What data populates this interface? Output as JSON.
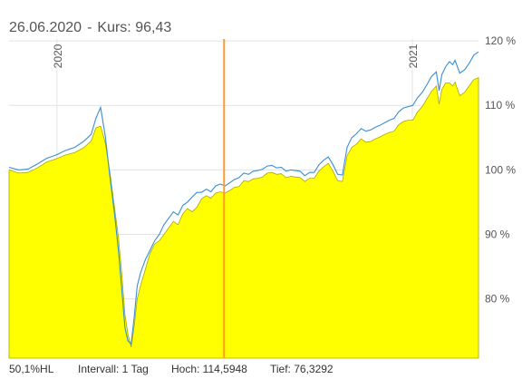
{
  "header": {
    "date": "26.06.2020",
    "separator": "-",
    "kurs_label": "Kurs:",
    "kurs_value": "96,43"
  },
  "footer": {
    "hl": "50,1%HL",
    "interval": "Intervall: 1 Tag",
    "hoch": "Hoch: 114,5948",
    "tief": "Tief: 76,3292"
  },
  "colors": {
    "area_fill": "#ffff00",
    "area_line": "#a8a800",
    "line": "#3a8fd0",
    "cursor": "#ff9a2e",
    "grid": "#e3e3e3"
  },
  "chart_data": {
    "type": "area",
    "x_labels": [
      "2020",
      "2021"
    ],
    "y_ticks": [
      {
        "value": 80,
        "label": "80 %"
      },
      {
        "value": 90,
        "label": "90 %"
      },
      {
        "value": 100,
        "label": "100 %"
      },
      {
        "value": 110,
        "label": "110 %"
      },
      {
        "value": 120,
        "label": "120 %"
      }
    ],
    "ylim": [
      70.8,
      120.3
    ],
    "grid": true,
    "x_domain": [
      0,
      100
    ],
    "cursor_x": 45.8,
    "x_label_positions": [
      10.2,
      85.9
    ],
    "series": [
      {
        "kind": "area",
        "points": [
          [
            0,
            100
          ],
          [
            2,
            99.5
          ],
          [
            4,
            99.6
          ],
          [
            6,
            100.3
          ],
          [
            8,
            101.2
          ],
          [
            10,
            101.7
          ],
          [
            12,
            102.3
          ],
          [
            14,
            102.7
          ],
          [
            16,
            103.5
          ],
          [
            17.5,
            104.5
          ],
          [
            18.5,
            106.5
          ],
          [
            19.5,
            106.8
          ],
          [
            20.5,
            104.2
          ],
          [
            21.5,
            99.5
          ],
          [
            22.5,
            94
          ],
          [
            23.3,
            89.5
          ],
          [
            24,
            84
          ],
          [
            24.7,
            77.5
          ],
          [
            25.3,
            74.6
          ],
          [
            26,
            72.5
          ],
          [
            26.7,
            76
          ],
          [
            27.3,
            80
          ],
          [
            28,
            82
          ],
          [
            29,
            84.5
          ],
          [
            30,
            87
          ],
          [
            31,
            88.5
          ],
          [
            32,
            89
          ],
          [
            33,
            90
          ],
          [
            34,
            91
          ],
          [
            35,
            92
          ],
          [
            36,
            91.5
          ],
          [
            37,
            93.2
          ],
          [
            38,
            94
          ],
          [
            39,
            93.5
          ],
          [
            40,
            94.2
          ],
          [
            41,
            95.5
          ],
          [
            42,
            96
          ],
          [
            43,
            95.6
          ],
          [
            44,
            96.4
          ],
          [
            45,
            96.6
          ],
          [
            46,
            96.4
          ],
          [
            47,
            96.8
          ],
          [
            48,
            97.3
          ],
          [
            49,
            97.4
          ],
          [
            50,
            98.3
          ],
          [
            51,
            98.2
          ],
          [
            52,
            98.6
          ],
          [
            53,
            98.7
          ],
          [
            54,
            98.9
          ],
          [
            55,
            99.5
          ],
          [
            56,
            99.6
          ],
          [
            57,
            99.3
          ],
          [
            58,
            99.4
          ],
          [
            59,
            98.8
          ],
          [
            60,
            99
          ],
          [
            61,
            98.9
          ],
          [
            62,
            98.8
          ],
          [
            63,
            98.2
          ],
          [
            64,
            98.7
          ],
          [
            65,
            98.7
          ],
          [
            66,
            99.8
          ],
          [
            67,
            100.5
          ],
          [
            68,
            101
          ],
          [
            69,
            99.8
          ],
          [
            70,
            98.3
          ],
          [
            71,
            98.2
          ],
          [
            72,
            102.2
          ],
          [
            73,
            103.5
          ],
          [
            74,
            104
          ],
          [
            75,
            104.8
          ],
          [
            76,
            104.3
          ],
          [
            77,
            104.4
          ],
          [
            78,
            104.8
          ],
          [
            79,
            105.1
          ],
          [
            80,
            105.5
          ],
          [
            81,
            105.8
          ],
          [
            82,
            106
          ],
          [
            83,
            107
          ],
          [
            84,
            107.5
          ],
          [
            85,
            107.7
          ],
          [
            86,
            107.7
          ],
          [
            87,
            109
          ],
          [
            88,
            109.8
          ],
          [
            89,
            111
          ],
          [
            90,
            112.2
          ],
          [
            91,
            113
          ],
          [
            91.6,
            110.2
          ],
          [
            92.2,
            112.5
          ],
          [
            93,
            113.5
          ],
          [
            93.8,
            113.5
          ],
          [
            94.5,
            113
          ],
          [
            95,
            113.6
          ],
          [
            96,
            111.5
          ],
          [
            97,
            112
          ],
          [
            98,
            113
          ],
          [
            99,
            114
          ],
          [
            100,
            114.3
          ]
        ]
      },
      {
        "kind": "line",
        "points": [
          [
            0,
            100.4
          ],
          [
            2,
            100
          ],
          [
            4,
            100.1
          ],
          [
            6,
            100.9
          ],
          [
            8,
            101.8
          ],
          [
            10,
            102.3
          ],
          [
            12,
            103
          ],
          [
            14,
            103.5
          ],
          [
            16,
            104.5
          ],
          [
            17.5,
            105.5
          ],
          [
            18.5,
            108
          ],
          [
            19.5,
            109.7
          ],
          [
            20.5,
            105.2
          ],
          [
            21.5,
            98.8
          ],
          [
            22.5,
            93
          ],
          [
            23.3,
            87.5
          ],
          [
            24,
            81.5
          ],
          [
            24.7,
            75.5
          ],
          [
            25.3,
            73.5
          ],
          [
            26,
            73
          ],
          [
            26.7,
            77.5
          ],
          [
            27.3,
            82
          ],
          [
            28,
            84
          ],
          [
            29,
            86
          ],
          [
            30,
            87.5
          ],
          [
            31,
            89
          ],
          [
            32,
            90
          ],
          [
            33,
            91.5
          ],
          [
            34,
            92.5
          ],
          [
            35,
            93.5
          ],
          [
            36,
            93
          ],
          [
            37,
            94.5
          ],
          [
            38,
            95
          ],
          [
            39,
            95.8
          ],
          [
            40,
            96.5
          ],
          [
            41,
            96.5
          ],
          [
            42,
            97
          ],
          [
            43,
            96.6
          ],
          [
            44,
            97.5
          ],
          [
            45,
            97.8
          ],
          [
            46,
            97.5
          ],
          [
            47,
            98
          ],
          [
            48,
            98.5
          ],
          [
            49,
            98.8
          ],
          [
            50,
            99.5
          ],
          [
            51,
            99.3
          ],
          [
            52,
            99.8
          ],
          [
            53,
            99.9
          ],
          [
            54,
            100.1
          ],
          [
            55,
            100.6
          ],
          [
            56,
            100.7
          ],
          [
            57,
            100.3
          ],
          [
            58,
            100.4
          ],
          [
            59,
            99.8
          ],
          [
            60,
            100
          ],
          [
            61,
            99.9
          ],
          [
            62,
            99.8
          ],
          [
            63,
            99.1
          ],
          [
            64,
            99.6
          ],
          [
            65,
            99.6
          ],
          [
            66,
            100.8
          ],
          [
            67,
            101.5
          ],
          [
            68,
            102
          ],
          [
            69,
            100.8
          ],
          [
            70,
            99.3
          ],
          [
            71,
            99.2
          ],
          [
            72,
            103.5
          ],
          [
            73,
            105
          ],
          [
            74,
            105.6
          ],
          [
            75,
            106.4
          ],
          [
            76,
            106
          ],
          [
            77,
            106.2
          ],
          [
            78,
            106.6
          ],
          [
            79,
            106.9
          ],
          [
            80,
            107.3
          ],
          [
            81,
            107.7
          ],
          [
            82,
            108
          ],
          [
            83,
            109
          ],
          [
            84,
            109.6
          ],
          [
            85,
            109.8
          ],
          [
            86,
            110
          ],
          [
            87,
            111.2
          ],
          [
            88,
            112
          ],
          [
            89,
            113.2
          ],
          [
            90,
            114.5
          ],
          [
            91,
            115.2
          ],
          [
            91.6,
            112.3
          ],
          [
            92.2,
            114.8
          ],
          [
            93,
            116
          ],
          [
            93.8,
            116.8
          ],
          [
            94.5,
            116.3
          ],
          [
            95,
            117
          ],
          [
            96,
            115
          ],
          [
            97,
            115.5
          ],
          [
            98,
            116.5
          ],
          [
            99,
            117.8
          ],
          [
            100,
            118.3
          ]
        ]
      }
    ]
  }
}
